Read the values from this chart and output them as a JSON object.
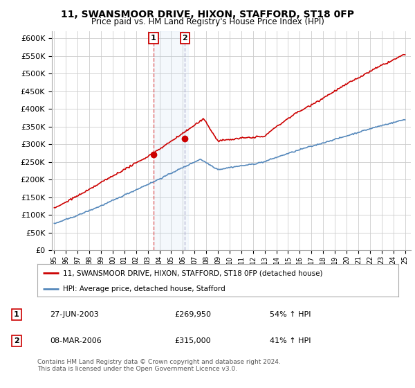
{
  "title": "11, SWANSMOOR DRIVE, HIXON, STAFFORD, ST18 0FP",
  "subtitle": "Price paid vs. HM Land Registry's House Price Index (HPI)",
  "property_label": "11, SWANSMOOR DRIVE, HIXON, STAFFORD, ST18 0FP (detached house)",
  "hpi_label": "HPI: Average price, detached house, Stafford",
  "transaction1_date": "27-JUN-2003",
  "transaction1_price": "£269,950",
  "transaction1_hpi": "54% ↑ HPI",
  "transaction2_date": "08-MAR-2006",
  "transaction2_price": "£315,000",
  "transaction2_hpi": "41% ↑ HPI",
  "footer": "Contains HM Land Registry data © Crown copyright and database right 2024.\nThis data is licensed under the Open Government Licence v3.0.",
  "property_color": "#cc0000",
  "hpi_color": "#5588bb",
  "background_color": "#ffffff",
  "plot_bg_color": "#ffffff",
  "grid_color": "#cccccc",
  "transaction1_x": 2003.49,
  "transaction2_x": 2006.18,
  "t1_y": 269950,
  "t2_y": 315000,
  "ylim_min": 0,
  "ylim_max": 620000,
  "yticks": [
    0,
    50000,
    100000,
    150000,
    200000,
    250000,
    300000,
    350000,
    400000,
    450000,
    500000,
    550000,
    600000
  ],
  "xlim_min": 1994.8,
  "xlim_max": 2025.5,
  "xticks": [
    1995,
    1996,
    1997,
    1998,
    1999,
    2000,
    2001,
    2002,
    2003,
    2004,
    2005,
    2006,
    2007,
    2008,
    2009,
    2010,
    2011,
    2012,
    2013,
    2014,
    2015,
    2016,
    2017,
    2018,
    2019,
    2020,
    2021,
    2022,
    2023,
    2024,
    2025
  ],
  "seed": 42
}
